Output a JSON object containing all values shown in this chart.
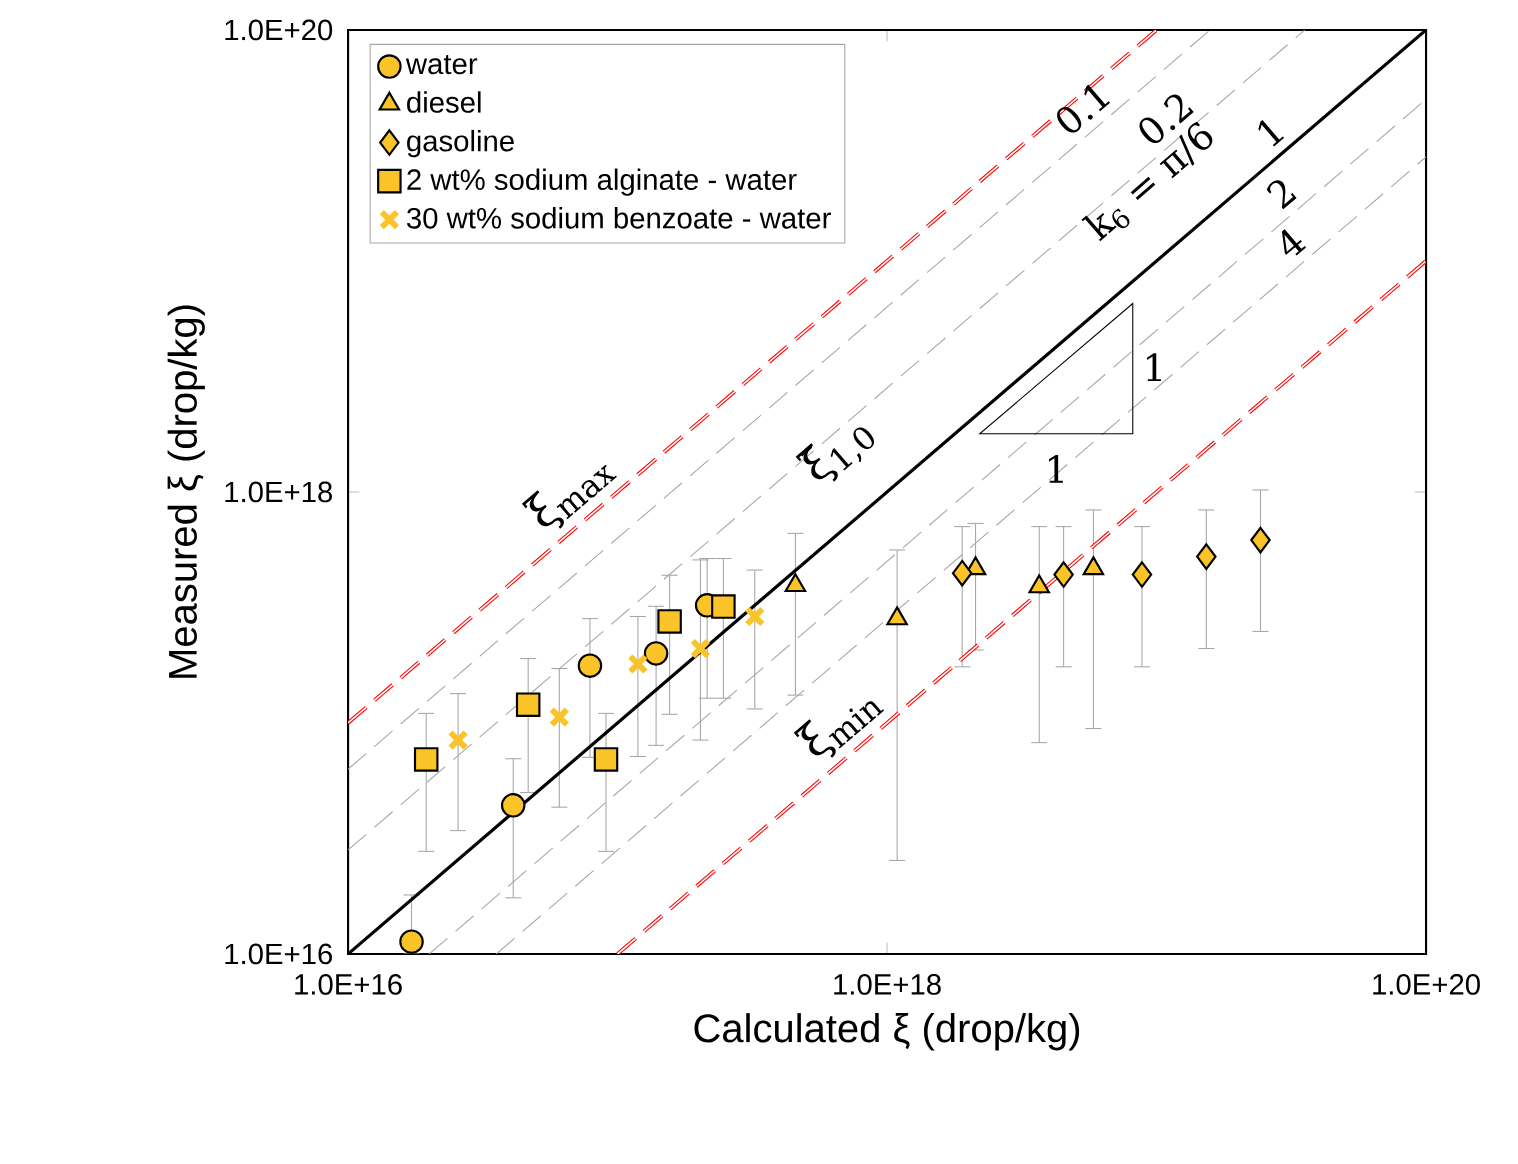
{
  "chart_data": {
    "type": "scatter",
    "xlabel": "Calculated  ξ  (drop/kg)",
    "ylabel": "Measured  ξ  (drop/kg)",
    "log": "xy",
    "xlim": [
      1e+16,
      1e+20
    ],
    "ylim": [
      1e+16,
      1e+20
    ],
    "xticks": [
      {
        "value": 1e+16,
        "label": "1.0E+16"
      },
      {
        "value": 1e+18,
        "label": "1.0E+18"
      },
      {
        "value": 1e+20,
        "label": "1.0E+20"
      }
    ],
    "yticks": [
      {
        "value": 1e+16,
        "label": "1.0E+16"
      },
      {
        "value": 1e+18,
        "label": "1.0E+18"
      },
      {
        "value": 1e+20,
        "label": "1.0E+20"
      }
    ],
    "legend": "top left",
    "annotations": [
      "k$_{6}$ = π/6",
      "ξ̄$_{1,0}$",
      "1",
      "1"
    ],
    "series": [
      {
        "name": "water",
        "color": "#fac327",
        "marker": "circle",
        "x": [
          1.72e+16,
          4.1e+16,
          7.9e+16,
          1.39e+17,
          2.15e+17
        ],
        "values": [
          1.13e+16,
          4.4e+16,
          1.77e+17,
          2e+17,
          3.23e+17
        ],
        "errors": [
          [
            1e+16,
            1.8e+16
          ],
          [
            1.75e+16,
            7e+16
          ],
          [
            7.1e+16,
            2.83e+17
          ],
          [
            8e+16,
            3.2e+17
          ],
          [
            1.28e+17,
            5.15e+17
          ]
        ]
      },
      {
        "name": "diesel",
        "color": "#fac327",
        "marker": "triangle",
        "x": [
          4.57e+17,
          1.09e+18,
          2.13e+18,
          3.67e+18,
          5.83e+18
        ],
        "values": [
          3.94e+17,
          2.83e+17,
          4.66e+17,
          3.89e+17,
          4.66e+17
        ],
        "errors": [
          [
            1.32e+17,
            6.62e+17
          ],
          [
            2.54e+16,
            5.61e+17
          ],
          [
            2.07e+17,
            7.31e+17
          ],
          [
            8.22e+16,
            7.08e+17
          ],
          [
            9.46e+16,
            8.36e+17
          ]
        ]
      },
      {
        "name": "gasoline",
        "color": "#fac327",
        "marker": "diamond",
        "x": [
          1.9e+18,
          4.52e+18,
          8.83e+18,
          1.53e+19,
          2.43e+19
        ],
        "values": [
          4.45e+17,
          4.39e+17,
          4.39e+17,
          5.25e+17,
          6.19e+17
        ],
        "errors": [
          [
            1.75e+17,
            7.08e+17
          ],
          [
            1.75e+17,
            7.08e+17
          ],
          [
            1.75e+17,
            7.08e+17
          ],
          [
            2.1e+17,
            8.36e+17
          ],
          [
            2.49e+17,
            1.02e+18
          ]
        ]
      },
      {
        "name": "2 wt% sodium alginate - water",
        "color": "#fac327",
        "marker": "square",
        "x": [
          1.95e+16,
          4.66e+16,
          9.06e+16,
          1.56e+17,
          2.47e+17
        ],
        "values": [
          6.95e+16,
          1.2e+17,
          6.95e+16,
          2.75e+17,
          3.19e+17
        ],
        "errors": [
          [
            2.78e+16,
            1.1e+17
          ],
          [
            5e+16,
            1.9e+17
          ],
          [
            2.78e+16,
            1.1e+17
          ],
          [
            1.09e+17,
            4.36e+17
          ],
          [
            1.28e+17,
            5.15e+17
          ]
        ]
      },
      {
        "name": "30 wt% sodium benzoate - water",
        "color": "#fac327",
        "marker": "cross",
        "x": [
          2.56e+16,
          6.08e+16,
          1.19e+17,
          2.03e+17,
          3.23e+17
        ],
        "values": [
          8.43e+16,
          1.06e+17,
          1.8e+17,
          2.1e+17,
          2.89e+17
        ],
        "errors": [
          [
            3.42e+16,
            1.34e+17
          ],
          [
            4.32e+16,
            1.72e+17
          ],
          [
            7.16e+16,
            2.89e+17
          ],
          [
            8.43e+16,
            5.08e+17
          ],
          [
            1.15e+17,
            4.59e+17
          ]
        ]
      },
      {
        "name": "ξ$_{max}$",
        "type": "line",
        "color": "#ff0000",
        "line_style": "dashed",
        "marker": "none",
        "x": [
          1e+16,
          1e+19
        ],
        "values": [
          1e+17,
          1e+20
        ]
      },
      {
        "name": "0.1",
        "type": "line",
        "color": "#a6a6a6",
        "line_style": "dashed",
        "marker": "none",
        "x": [
          1e+16,
          1.58e+19
        ],
        "values": [
          6.31e+16,
          1e+20
        ]
      },
      {
        "name": "0.2",
        "type": "line",
        "color": "#a6a6a6",
        "line_style": "dashed",
        "marker": "none",
        "x": [
          1e+16,
          3.55e+19
        ],
        "values": [
          2.82e+16,
          1e+20
        ]
      },
      {
        "name": "1",
        "type": "line",
        "color": "#000000",
        "line_style": "solid",
        "marker": "none",
        "x": [
          1e+16,
          1e+20
        ],
        "values": [
          1e+16,
          1e+20
        ]
      },
      {
        "name": "2",
        "type": "line",
        "color": "#a6a6a6",
        "line_style": "dashed",
        "marker": "none",
        "x": [
          2e+16,
          1e+20
        ],
        "values": [
          1e+16,
          5.01e+19
        ]
      },
      {
        "name": "4",
        "type": "line",
        "color": "#a6a6a6",
        "line_style": "dashed",
        "marker": "none",
        "x": [
          3.55e+16,
          1e+20
        ],
        "values": [
          1e+16,
          2.82e+19
        ]
      },
      {
        "name": "ξ$_{min}$",
        "type": "line",
        "color": "#ff0000",
        "line_style": "dashed",
        "marker": "none",
        "x": [
          1e+17,
          1e+20
        ],
        "values": [
          1e+16,
          1e+19
        ]
      }
    ]
  }
}
